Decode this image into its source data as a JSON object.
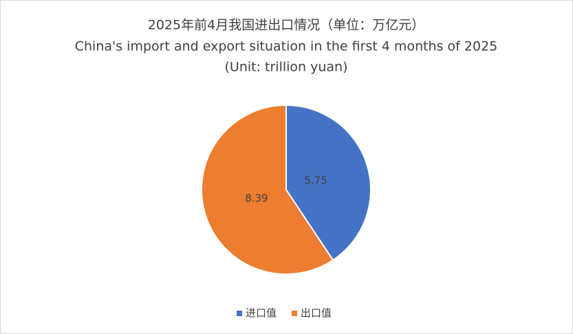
{
  "chart_data": {
    "type": "pie",
    "title": [
      "2025年前4月我国进出口情况（单位：万亿元）",
      "China's import and export situation in the first 4 months of 2025",
      "(Unit: trillion yuan)"
    ],
    "categories": [
      "进口值",
      "出口值"
    ],
    "values": [
      5.75,
      8.39
    ],
    "colors": [
      "#4472c4",
      "#ed7d31"
    ],
    "legend": "bottom"
  }
}
